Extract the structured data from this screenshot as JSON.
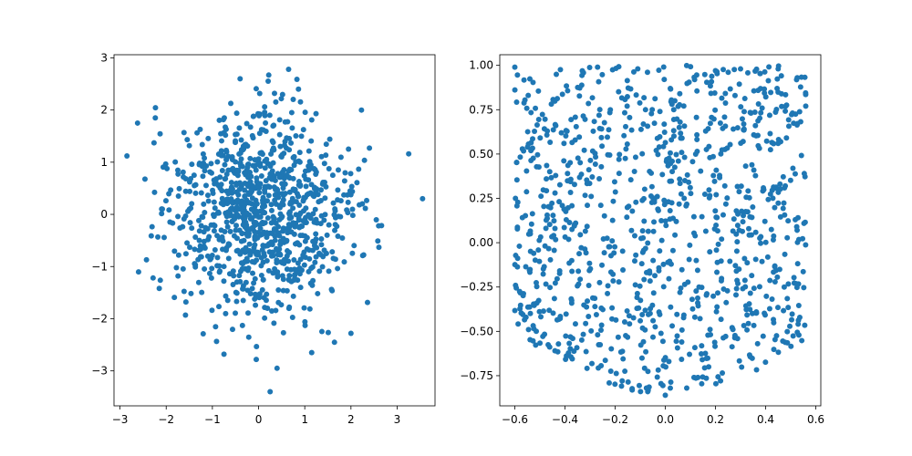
{
  "colors": {
    "marker": "#1f77b4",
    "axes": "#000000",
    "background": "#ffffff"
  },
  "chart_data": [
    {
      "type": "scatter",
      "title": "",
      "xlabel": "",
      "ylabel": "",
      "xlim": [
        -3.13,
        3.82
      ],
      "ylim": [
        -3.67,
        3.06
      ],
      "xticks": [
        -3,
        -2,
        -1,
        0,
        1,
        2,
        3
      ],
      "yticks": [
        -3,
        -2,
        -1,
        0,
        1,
        2,
        3
      ],
      "xtick_labels": [
        "−3",
        "−2",
        "−1",
        "0",
        "1",
        "2",
        "3"
      ],
      "ytick_labels": [
        "−3",
        "−2",
        "−1",
        "0",
        "1",
        "2",
        "3"
      ],
      "grid": false,
      "legend": "none",
      "n_points": 1000,
      "distribution": "bivariate standard normal",
      "sample_points": [
        [
          -2.85,
          1.12
        ],
        [
          -2.62,
          1.75
        ],
        [
          3.25,
          1.16
        ],
        [
          3.55,
          0.3
        ],
        [
          0.25,
          -3.4
        ],
        [
          0.4,
          -2.95
        ],
        [
          0.65,
          2.78
        ],
        [
          0.22,
          2.67
        ],
        [
          -0.4,
          2.6
        ],
        [
          1.15,
          -2.65
        ],
        [
          2.0,
          -2.28
        ],
        [
          -0.05,
          -2.78
        ],
        [
          2.6,
          -0.22
        ],
        [
          2.4,
          1.27
        ],
        [
          -2.15,
          -1.42
        ]
      ]
    },
    {
      "type": "scatter",
      "title": "",
      "xlabel": "",
      "ylabel": "",
      "xlim": [
        -0.66,
        0.62
      ],
      "ylim": [
        -0.92,
        1.06
      ],
      "xticks": [
        -0.6,
        -0.4,
        -0.2,
        0.0,
        0.2,
        0.4,
        0.6
      ],
      "yticks": [
        -0.75,
        -0.5,
        -0.25,
        0.0,
        0.25,
        0.5,
        0.75,
        1.0
      ],
      "xtick_labels": [
        "−0.6",
        "−0.4",
        "−0.2",
        "0.0",
        "0.2",
        "0.4",
        "0.6"
      ],
      "ytick_labels": [
        "−0.75",
        "−0.50",
        "−0.25",
        "0.00",
        "0.25",
        "0.50",
        "0.75",
        "1.00"
      ],
      "grid": false,
      "legend": "none",
      "n_points": 1000,
      "distribution": "x uniform in [-0.6, 0.56]; y uniform between x^2 - 0.85 (approx.) and 1.0",
      "sample_points": [
        [
          -0.6,
          0.99
        ],
        [
          0.0,
          -0.86
        ],
        [
          0.02,
          -0.82
        ],
        [
          0.3,
          0.98
        ],
        [
          0.45,
          0.98
        ],
        [
          0.56,
          0.77
        ],
        [
          -0.27,
          0.99
        ],
        [
          0.2,
          0.97
        ],
        [
          0.13,
          -0.76
        ],
        [
          -0.07,
          -0.84
        ]
      ]
    }
  ]
}
